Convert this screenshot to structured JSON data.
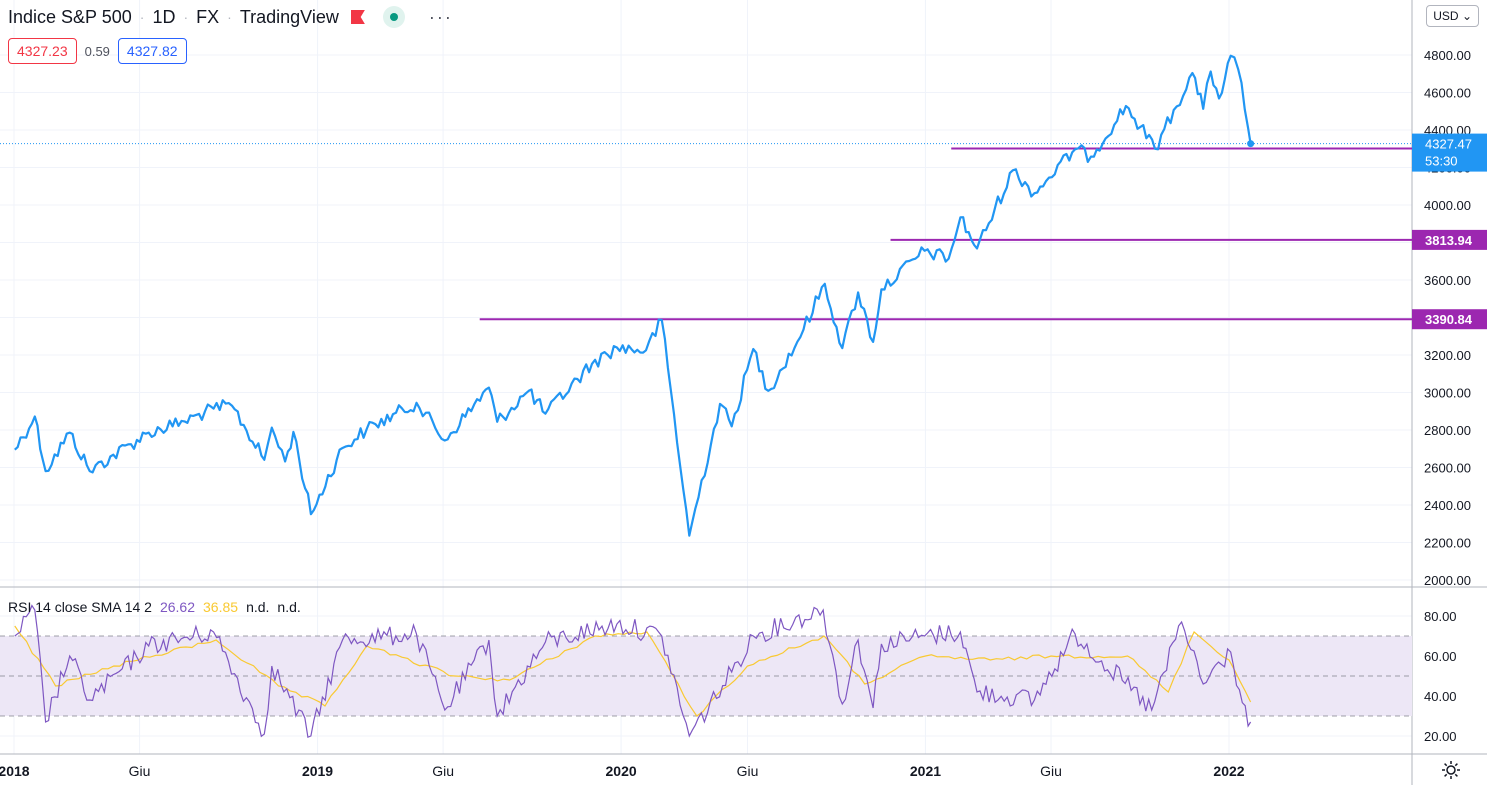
{
  "header": {
    "title": "Indice S&P 500",
    "interval": "1D",
    "exchange": "FX",
    "source": "TradingView",
    "more_label": "···"
  },
  "prices": {
    "bid": "4327.23",
    "spread": "0.59",
    "ask": "4327.82"
  },
  "currency_button": "USD",
  "rsi_legend": {
    "label": "RSI 14 close SMA 14 2",
    "rsi": "26.62",
    "sma": "36.85",
    "na1": "n.d.",
    "na2": "n.d."
  },
  "colors": {
    "price_line": "#2196f3",
    "level_line": "#9c27b0",
    "rsi_line": "#7e57c2",
    "sma_line": "#f9c932",
    "rsi_band": "#ede7f6"
  },
  "chart_data": [
    {
      "type": "line",
      "series": [
        {
          "x": [
            "2018-01-02",
            "2018-01-26",
            "2018-02-08",
            "2018-03-09",
            "2018-04-02",
            "2018-06-12",
            "2018-07-25",
            "2018-08-29",
            "2018-09-20",
            "2018-10-29",
            "2018-11-07",
            "2018-11-23",
            "2018-12-03",
            "2018-12-24",
            "2019-01-31",
            "2019-03-01",
            "2019-04-30",
            "2019-06-03",
            "2019-07-26",
            "2019-08-05",
            "2019-09-12",
            "2019-10-02",
            "2019-11-27",
            "2019-12-27",
            "2020-01-31",
            "2020-02-19",
            "2020-03-23",
            "2020-04-29",
            "2020-05-13",
            "2020-06-08",
            "2020-06-26",
            "2020-07-31",
            "2020-09-02",
            "2020-09-23",
            "2020-10-12",
            "2020-10-30",
            "2020-11-09",
            "2020-12-31",
            "2021-01-29",
            "2021-02-12",
            "2021-03-04",
            "2021-04-16",
            "2021-05-12",
            "2021-06-30",
            "2021-07-19",
            "2021-08-30",
            "2021-10-04",
            "2021-11-18",
            "2021-12-01",
            "2021-12-10",
            "2021-12-20",
            "2022-01-03",
            "2022-01-12",
            "2022-01-24",
            "2022-01-27"
          ],
          "values": [
            2695,
            2872,
            2581,
            2786,
            2581,
            2786,
            2846,
            2914,
            2930,
            2641,
            2813,
            2632,
            2790,
            2351,
            2704,
            2803,
            2945,
            2744,
            3026,
            2844,
            3009,
            2887,
            3153,
            3240,
            3225,
            3386,
            2237,
            2939,
            2820,
            3232,
            3009,
            3271,
            3580,
            3237,
            3534,
            3270,
            3550,
            3756,
            3714,
            3934,
            3768,
            4185,
            4063,
            4297,
            4258,
            4528,
            4300,
            4704,
            4513,
            4712,
            4568,
            4796,
            4726,
            4410,
            4327
          ]
        }
      ],
      "levels": [
        {
          "value": 4301.18,
          "label": "4301.18",
          "start": "2021-02-01"
        },
        {
          "value": 3813.94,
          "label": "3813.94",
          "start": "2020-11-20"
        },
        {
          "value": 3390.84,
          "label": "3390.84",
          "start": "2019-07-15"
        }
      ],
      "last": {
        "value": 4327.47,
        "label": "4327.47",
        "countdown": "53:30"
      },
      "y_ticks": [
        "2000.00",
        "2200.00",
        "2400.00",
        "2600.00",
        "2800.00",
        "3000.00",
        "3200.00",
        "3400.00",
        "3600.00",
        "3800.00",
        "4000.00",
        "4200.00",
        "4400.00",
        "4600.00",
        "4800.00"
      ],
      "ylim": [
        2000,
        4800
      ],
      "x_ticks": [
        {
          "date": "2018-01-01",
          "label": "2018",
          "bold": true
        },
        {
          "date": "2018-06-01",
          "label": "Giu",
          "bold": false
        },
        {
          "date": "2019-01-01",
          "label": "2019",
          "bold": true
        },
        {
          "date": "2019-06-01",
          "label": "Giu",
          "bold": false
        },
        {
          "date": "2020-01-01",
          "label": "2020",
          "bold": true
        },
        {
          "date": "2020-06-01",
          "label": "Giu",
          "bold": false
        },
        {
          "date": "2021-01-01",
          "label": "2021",
          "bold": true
        },
        {
          "date": "2021-06-01",
          "label": "Giu",
          "bold": false
        },
        {
          "date": "2022-01-01",
          "label": "2022",
          "bold": true
        }
      ],
      "grid": true
    },
    {
      "type": "line",
      "series": [
        {
          "name": "RSI",
          "x": [
            "2018-01-02",
            "2018-01-26",
            "2018-02-08",
            "2018-03-09",
            "2018-04-02",
            "2018-06-12",
            "2018-08-29",
            "2018-10-29",
            "2018-11-07",
            "2018-12-24",
            "2019-01-31",
            "2019-04-30",
            "2019-06-03",
            "2019-07-26",
            "2019-08-05",
            "2019-10-02",
            "2019-12-27",
            "2020-02-19",
            "2020-03-23",
            "2020-05-13",
            "2020-06-08",
            "2020-08-31",
            "2020-09-23",
            "2020-10-12",
            "2020-10-30",
            "2020-11-09",
            "2020-12-31",
            "2021-02-12",
            "2021-03-04",
            "2021-05-12",
            "2021-06-30",
            "2021-09-30",
            "2021-11-05",
            "2021-12-01",
            "2022-01-03",
            "2022-01-24",
            "2022-01-27"
          ],
          "values": [
            70,
            83,
            27,
            60,
            38,
            65,
            72,
            21,
            55,
            20,
            68,
            71,
            33,
            68,
            30,
            67,
            76,
            70,
            20,
            52,
            70,
            83,
            36,
            68,
            34,
            66,
            70,
            72,
            42,
            38,
            71,
            33,
            77,
            46,
            62,
            25,
            27
          ]
        },
        {
          "name": "SMA",
          "x": [
            "2018-01-02",
            "2018-02-20",
            "2018-05-01",
            "2018-09-01",
            "2018-11-15",
            "2019-01-10",
            "2019-03-01",
            "2019-06-15",
            "2019-08-20",
            "2019-12-01",
            "2020-02-01",
            "2020-04-01",
            "2020-06-01",
            "2020-09-01",
            "2020-10-20",
            "2021-01-01",
            "2021-03-20",
            "2021-06-01",
            "2021-09-01",
            "2021-10-20",
            "2021-11-20",
            "2022-01-01",
            "2022-01-27"
          ],
          "values": [
            75,
            45,
            55,
            68,
            45,
            35,
            65,
            50,
            48,
            70,
            72,
            30,
            55,
            70,
            46,
            60,
            58,
            60,
            60,
            42,
            72,
            58,
            37
          ]
        }
      ],
      "y_ticks": [
        "20.00",
        "40.00",
        "60.00",
        "80.00"
      ],
      "ylim": [
        15,
        86
      ],
      "band": [
        30,
        70
      ],
      "midline": 50
    }
  ]
}
